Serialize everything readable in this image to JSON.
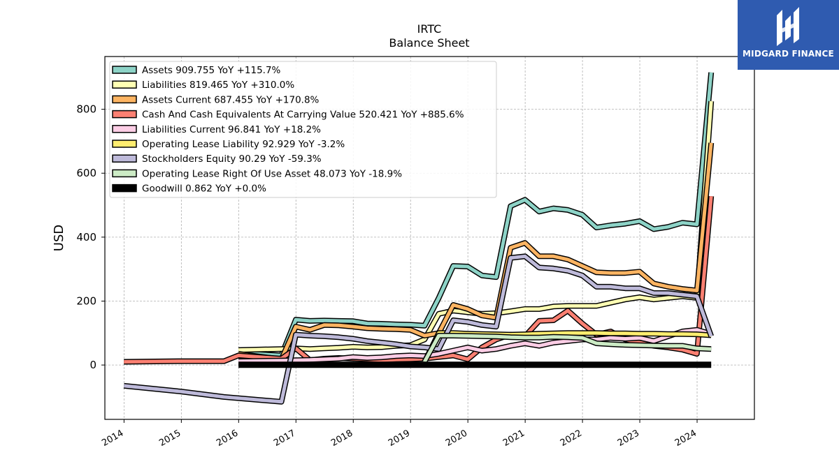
{
  "branding": {
    "logo_text": "MIDGARD FINANCE"
  },
  "chart_data": {
    "type": "line",
    "title": "IRTC",
    "subtitle": "Balance  Sheet",
    "xlabel": "",
    "ylabel": "USD",
    "xlim": [
      "2013-09-01",
      "2025-01-01"
    ],
    "ylim": [
      -170,
      965
    ],
    "xticks": [
      "2014",
      "2015",
      "2016",
      "2017",
      "2018",
      "2019",
      "2020",
      "2021",
      "2022",
      "2023",
      "2024"
    ],
    "yticks": [
      0,
      200,
      400,
      600,
      800
    ],
    "grid": true,
    "legend_position": "top-left",
    "series": [
      {
        "name": "Assets",
        "legend": "Assets  909.755 YoY +115.7%",
        "color": "#8dd3c7",
        "points": [
          [
            "2015-12-31",
            38
          ],
          [
            "2016-09-30",
            30
          ],
          [
            "2016-12-31",
            142
          ],
          [
            "2017-03-31",
            138
          ],
          [
            "2017-06-30",
            139
          ],
          [
            "2017-09-30",
            138
          ],
          [
            "2017-12-31",
            137
          ],
          [
            "2018-03-31",
            130
          ],
          [
            "2018-06-30",
            129
          ],
          [
            "2018-09-30",
            127
          ],
          [
            "2018-12-31",
            126
          ],
          [
            "2019-03-31",
            123
          ],
          [
            "2019-06-30",
            210
          ],
          [
            "2019-09-30",
            310
          ],
          [
            "2019-12-31",
            308
          ],
          [
            "2020-03-31",
            280
          ],
          [
            "2020-06-30",
            275
          ],
          [
            "2020-09-30",
            497
          ],
          [
            "2020-12-31",
            517
          ],
          [
            "2021-03-31",
            480
          ],
          [
            "2021-06-30",
            490
          ],
          [
            "2021-09-30",
            485
          ],
          [
            "2021-12-31",
            470
          ],
          [
            "2022-03-31",
            430
          ],
          [
            "2022-06-30",
            437
          ],
          [
            "2022-09-30",
            442
          ],
          [
            "2022-12-31",
            450
          ],
          [
            "2023-03-31",
            425
          ],
          [
            "2023-06-30",
            432
          ],
          [
            "2023-09-30",
            445
          ],
          [
            "2023-12-31",
            440
          ],
          [
            "2024-03-31",
            915
          ]
        ]
      },
      {
        "name": "Liabilities",
        "legend": "Liabilities  819.465 YoY +310.0%",
        "color": "#ffffb3",
        "points": [
          [
            "2015-12-31",
            47
          ],
          [
            "2016-09-30",
            50
          ],
          [
            "2016-12-31",
            52
          ],
          [
            "2017-03-31",
            50
          ],
          [
            "2017-06-30",
            52
          ],
          [
            "2017-09-30",
            54
          ],
          [
            "2017-12-31",
            57
          ],
          [
            "2018-03-31",
            55
          ],
          [
            "2018-06-30",
            56
          ],
          [
            "2018-09-30",
            60
          ],
          [
            "2018-12-31",
            62
          ],
          [
            "2019-03-31",
            80
          ],
          [
            "2019-06-30",
            160
          ],
          [
            "2019-09-30",
            170
          ],
          [
            "2019-12-31",
            165
          ],
          [
            "2020-03-31",
            160
          ],
          [
            "2020-06-30",
            162
          ],
          [
            "2020-09-30",
            168
          ],
          [
            "2020-12-31",
            175
          ],
          [
            "2021-03-31",
            175
          ],
          [
            "2021-06-30",
            183
          ],
          [
            "2021-09-30",
            185
          ],
          [
            "2021-12-31",
            185
          ],
          [
            "2022-03-31",
            185
          ],
          [
            "2022-06-30",
            195
          ],
          [
            "2022-09-30",
            205
          ],
          [
            "2022-12-31",
            212
          ],
          [
            "2023-03-31",
            205
          ],
          [
            "2023-06-30",
            210
          ],
          [
            "2023-09-30",
            215
          ],
          [
            "2023-12-31",
            210
          ],
          [
            "2024-03-31",
            825
          ]
        ]
      },
      {
        "name": "Assets Current",
        "legend": "Assets Current  687.455 YoY +170.8%",
        "color": "#fdb462",
        "points": [
          [
            "2015-12-31",
            35
          ],
          [
            "2016-09-30",
            18
          ],
          [
            "2016-12-31",
            120
          ],
          [
            "2017-03-31",
            110
          ],
          [
            "2017-06-30",
            125
          ],
          [
            "2017-09-30",
            124
          ],
          [
            "2017-12-31",
            120
          ],
          [
            "2018-03-31",
            115
          ],
          [
            "2018-06-30",
            113
          ],
          [
            "2018-09-30",
            112
          ],
          [
            "2018-12-31",
            110
          ],
          [
            "2019-03-31",
            92
          ],
          [
            "2019-06-30",
            100
          ],
          [
            "2019-09-30",
            188
          ],
          [
            "2019-12-31",
            175
          ],
          [
            "2020-03-31",
            155
          ],
          [
            "2020-06-30",
            148
          ],
          [
            "2020-09-30",
            367
          ],
          [
            "2020-12-31",
            382
          ],
          [
            "2021-03-31",
            340
          ],
          [
            "2021-06-30",
            340
          ],
          [
            "2021-09-30",
            330
          ],
          [
            "2021-12-31",
            310
          ],
          [
            "2022-03-31",
            290
          ],
          [
            "2022-06-30",
            288
          ],
          [
            "2022-09-30",
            288
          ],
          [
            "2022-12-31",
            292
          ],
          [
            "2023-03-31",
            255
          ],
          [
            "2023-06-30",
            245
          ],
          [
            "2023-09-30",
            238
          ],
          [
            "2023-12-31",
            233
          ],
          [
            "2024-03-31",
            695
          ]
        ]
      },
      {
        "name": "Cash And Cash Equivalents At Carrying Value",
        "legend": "Cash And Cash Equivalents At Carrying Value  520.421 YoY +885.6%",
        "color": "#fb8072",
        "points": [
          [
            "2013-12-31",
            10
          ],
          [
            "2014-12-31",
            12
          ],
          [
            "2015-09-30",
            12
          ],
          [
            "2015-12-31",
            30
          ],
          [
            "2016-09-30",
            20
          ],
          [
            "2016-12-31",
            52
          ],
          [
            "2017-03-31",
            15
          ],
          [
            "2017-06-30",
            20
          ],
          [
            "2017-09-30",
            22
          ],
          [
            "2017-12-31",
            20
          ],
          [
            "2018-03-31",
            18
          ],
          [
            "2018-06-30",
            15
          ],
          [
            "2018-09-30",
            17
          ],
          [
            "2018-12-31",
            18
          ],
          [
            "2019-03-31",
            20
          ],
          [
            "2019-06-30",
            25
          ],
          [
            "2019-09-30",
            30
          ],
          [
            "2019-12-31",
            18
          ],
          [
            "2020-03-31",
            55
          ],
          [
            "2020-06-30",
            80
          ],
          [
            "2020-09-30",
            95
          ],
          [
            "2020-12-31",
            90
          ],
          [
            "2021-03-31",
            138
          ],
          [
            "2021-06-30",
            140
          ],
          [
            "2021-09-30",
            170
          ],
          [
            "2021-12-31",
            130
          ],
          [
            "2022-03-31",
            95
          ],
          [
            "2022-06-30",
            105
          ],
          [
            "2022-09-30",
            80
          ],
          [
            "2022-12-31",
            70
          ],
          [
            "2023-03-31",
            60
          ],
          [
            "2023-06-30",
            55
          ],
          [
            "2023-09-30",
            48
          ],
          [
            "2023-12-31",
            35
          ],
          [
            "2024-03-31",
            528
          ]
        ]
      },
      {
        "name": "Liabilities Current",
        "legend": "Liabilities Current  96.841 YoY +18.2%",
        "color": "#fccde5",
        "points": [
          [
            "2015-12-31",
            12
          ],
          [
            "2016-09-30",
            14
          ],
          [
            "2016-12-31",
            15
          ],
          [
            "2017-03-31",
            16
          ],
          [
            "2017-06-30",
            18
          ],
          [
            "2017-09-30",
            20
          ],
          [
            "2017-12-31",
            25
          ],
          [
            "2018-03-31",
            22
          ],
          [
            "2018-06-30",
            24
          ],
          [
            "2018-09-30",
            28
          ],
          [
            "2018-12-31",
            30
          ],
          [
            "2019-03-31",
            28
          ],
          [
            "2019-06-30",
            35
          ],
          [
            "2019-09-30",
            45
          ],
          [
            "2019-12-31",
            55
          ],
          [
            "2020-03-31",
            45
          ],
          [
            "2020-06-30",
            50
          ],
          [
            "2020-09-30",
            60
          ],
          [
            "2020-12-31",
            68
          ],
          [
            "2021-03-31",
            60
          ],
          [
            "2021-06-30",
            70
          ],
          [
            "2021-09-30",
            75
          ],
          [
            "2021-12-31",
            80
          ],
          [
            "2022-03-31",
            80
          ],
          [
            "2022-06-30",
            85
          ],
          [
            "2022-09-30",
            82
          ],
          [
            "2022-12-31",
            85
          ],
          [
            "2023-03-31",
            75
          ],
          [
            "2023-06-30",
            90
          ],
          [
            "2023-09-30",
            105
          ],
          [
            "2023-12-31",
            110
          ],
          [
            "2024-03-31",
            97
          ]
        ]
      },
      {
        "name": "Operating Lease Liability",
        "legend": "Operating Lease Liability  92.929 YoY -3.2%",
        "color": "#ffed6f",
        "points": [
          [
            "2019-03-31",
            10
          ],
          [
            "2019-06-30",
            100
          ],
          [
            "2019-09-30",
            100
          ],
          [
            "2019-12-31",
            98
          ],
          [
            "2020-03-31",
            97
          ],
          [
            "2020-06-30",
            96
          ],
          [
            "2020-09-30",
            95
          ],
          [
            "2020-12-31",
            96
          ],
          [
            "2021-03-31",
            98
          ],
          [
            "2021-06-30",
            99
          ],
          [
            "2021-09-30",
            100
          ],
          [
            "2021-12-31",
            100
          ],
          [
            "2022-03-31",
            100
          ],
          [
            "2022-06-30",
            99
          ],
          [
            "2022-09-30",
            99
          ],
          [
            "2022-12-31",
            98
          ],
          [
            "2023-03-31",
            98
          ],
          [
            "2023-06-30",
            97
          ],
          [
            "2023-09-30",
            97
          ],
          [
            "2023-12-31",
            96
          ],
          [
            "2024-03-31",
            93
          ]
        ]
      },
      {
        "name": "Stockholders Equity",
        "legend": "Stockholders Equity  90.29 YoY -59.3%",
        "color": "#bebada",
        "points": [
          [
            "2013-12-31",
            -65
          ],
          [
            "2014-12-31",
            -83
          ],
          [
            "2015-09-30",
            -100
          ],
          [
            "2016-09-30",
            -115
          ],
          [
            "2016-12-31",
            95
          ],
          [
            "2017-03-31",
            92
          ],
          [
            "2017-06-30",
            90
          ],
          [
            "2017-09-30",
            87
          ],
          [
            "2017-12-31",
            82
          ],
          [
            "2018-03-31",
            75
          ],
          [
            "2018-06-30",
            70
          ],
          [
            "2018-09-30",
            65
          ],
          [
            "2018-12-31",
            58
          ],
          [
            "2019-03-31",
            55
          ],
          [
            "2019-06-30",
            50
          ],
          [
            "2019-09-30",
            140
          ],
          [
            "2019-12-31",
            135
          ],
          [
            "2020-03-31",
            125
          ],
          [
            "2020-06-30",
            120
          ],
          [
            "2020-09-30",
            335
          ],
          [
            "2020-12-31",
            340
          ],
          [
            "2021-03-31",
            305
          ],
          [
            "2021-06-30",
            302
          ],
          [
            "2021-09-30",
            295
          ],
          [
            "2021-12-31",
            280
          ],
          [
            "2022-03-31",
            245
          ],
          [
            "2022-06-30",
            245
          ],
          [
            "2022-09-30",
            240
          ],
          [
            "2022-12-31",
            240
          ],
          [
            "2023-03-31",
            225
          ],
          [
            "2023-06-30",
            225
          ],
          [
            "2023-09-30",
            220
          ],
          [
            "2023-12-31",
            215
          ],
          [
            "2024-03-31",
            90
          ]
        ]
      },
      {
        "name": "Operating Lease Right Of Use Asset",
        "legend": "Operating Lease Right Of Use Asset  48.073 YoY -18.9%",
        "color": "#ccebc5",
        "points": [
          [
            "2019-03-31",
            10
          ],
          [
            "2019-06-30",
            92
          ],
          [
            "2019-09-30",
            92
          ],
          [
            "2019-12-31",
            91
          ],
          [
            "2020-03-31",
            90
          ],
          [
            "2020-06-30",
            89
          ],
          [
            "2020-09-30",
            87
          ],
          [
            "2020-12-31",
            86
          ],
          [
            "2021-03-31",
            86
          ],
          [
            "2021-06-30",
            88
          ],
          [
            "2021-09-30",
            87
          ],
          [
            "2021-12-31",
            85
          ],
          [
            "2022-03-31",
            68
          ],
          [
            "2022-06-30",
            65
          ],
          [
            "2022-09-30",
            63
          ],
          [
            "2022-12-31",
            62
          ],
          [
            "2023-03-31",
            61
          ],
          [
            "2023-06-30",
            60
          ],
          [
            "2023-09-30",
            60
          ],
          [
            "2023-12-31",
            52
          ],
          [
            "2024-03-31",
            50
          ]
        ]
      },
      {
        "name": "Goodwill",
        "legend": "Goodwill  0.862 YoY +0.0%",
        "color": "#000000",
        "points": [
          [
            "2015-12-31",
            1
          ],
          [
            "2024-03-31",
            1
          ]
        ]
      }
    ]
  }
}
